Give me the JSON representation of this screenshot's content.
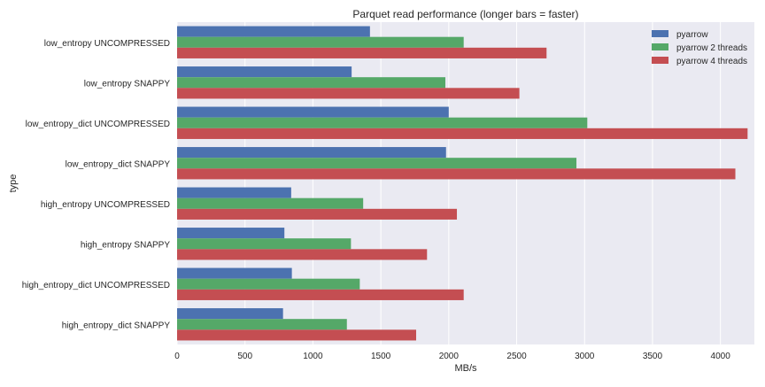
{
  "chart_data": {
    "type": "bar",
    "orientation": "horizontal",
    "title": "Parquet read performance (longer bars = faster)",
    "xlabel": "MB/s",
    "ylabel": "type",
    "xlim": [
      0,
      4250
    ],
    "xticks": [
      0,
      500,
      1000,
      1500,
      2000,
      2500,
      3000,
      3500,
      4000
    ],
    "grid": true,
    "legend_position": "top-right",
    "categories": [
      "low_entropy UNCOMPRESSED",
      "low_entropy SNAPPY",
      "low_entropy_dict UNCOMPRESSED",
      "low_entropy_dict SNAPPY",
      "high_entropy UNCOMPRESSED",
      "high_entropy SNAPPY",
      "high_entropy_dict UNCOMPRESSED",
      "high_entropy_dict SNAPPY"
    ],
    "series": [
      {
        "name": "pyarrow",
        "color": "#4c72b0",
        "values": [
          1420,
          1285,
          2000,
          1980,
          840,
          790,
          845,
          780
        ]
      },
      {
        "name": "pyarrow 2 threads",
        "color": "#55a868",
        "values": [
          2110,
          1975,
          3020,
          2940,
          1370,
          1280,
          1345,
          1250
        ]
      },
      {
        "name": "pyarrow 4 threads",
        "color": "#c44e52",
        "values": [
          2720,
          2520,
          4200,
          4110,
          2060,
          1840,
          2110,
          1760
        ]
      }
    ]
  }
}
